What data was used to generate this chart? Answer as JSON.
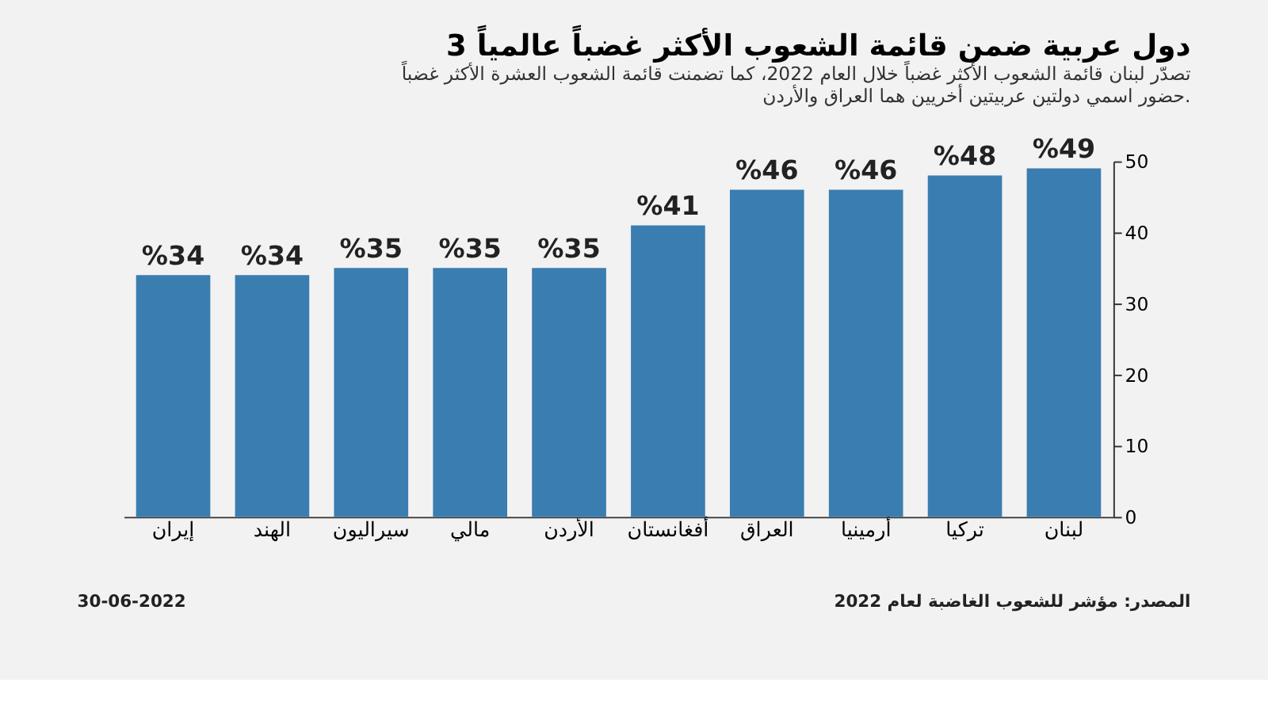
{
  "chart_data": {
    "type": "bar",
    "title": "3 دول عربية ضمن قائمة الشعوب الأكثر غضباً عالمياً",
    "subtitle": [
      "تصدّر لبنان قائمة الشعوب الأكثر غضباً خلال العام 2022، كما تضمنت قائمة الشعوب العشرة الأكثر غضباً",
      "حضور اسمي دولتين عربيتين أخريين هما العراق والأردن."
    ],
    "categories": [
      "إيران",
      "الهند",
      "سيراليون",
      "مالي",
      "الأردن",
      "أفغانستان",
      "العراق",
      "أرمينيا",
      "تركيا",
      "لبنان"
    ],
    "values": [
      34,
      34,
      35,
      35,
      35,
      41,
      46,
      46,
      48,
      49
    ],
    "value_labels": [
      "%34",
      "%34",
      "%35",
      "%35",
      "%35",
      "%41",
      "%46",
      "%46",
      "%48",
      "%49"
    ],
    "color": "#3a7db0",
    "ylim": [
      0,
      50
    ],
    "yticks": [
      0,
      10,
      20,
      30,
      40,
      50
    ],
    "grid": false,
    "annotations": [
      "المصدر: مؤشر للشعوب الغاضبة لعام 2022",
      "30-06-2022"
    ]
  }
}
